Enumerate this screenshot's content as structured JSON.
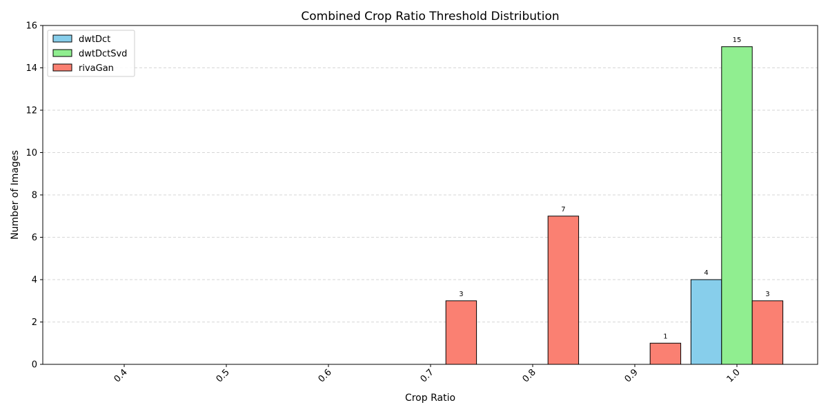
{
  "chart_data": {
    "type": "bar",
    "title": "Combined Crop Ratio Threshold Distribution",
    "xlabel": "Crop Ratio",
    "ylabel": "Number of Images",
    "categories": [
      "0.4",
      "0.5",
      "0.6",
      "0.7",
      "0.8",
      "0.9",
      "1.0"
    ],
    "series": [
      {
        "name": "dwtDct",
        "color": "#87ceeb",
        "values": [
          0,
          0,
          0,
          0,
          0,
          0,
          4
        ]
      },
      {
        "name": "dwtDctSvd",
        "color": "#90ee90",
        "values": [
          0,
          0,
          0,
          0,
          0,
          0,
          15
        ]
      },
      {
        "name": "rivaGan",
        "color": "#fa8072",
        "values": [
          0,
          0,
          0,
          3,
          7,
          1,
          3
        ]
      }
    ],
    "ylim": [
      0,
      16
    ],
    "yticks": [
      0,
      2,
      4,
      6,
      8,
      10,
      12,
      14,
      16
    ],
    "grid": "y-dashed",
    "legend_position": "top-left",
    "bar_edge_color": "#000000"
  }
}
